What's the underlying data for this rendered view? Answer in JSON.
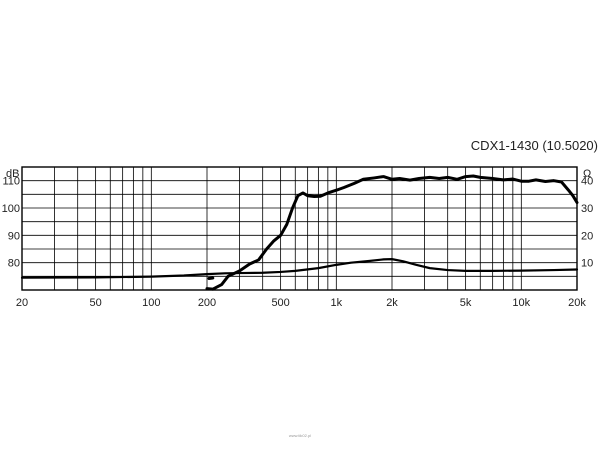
{
  "chart_data": {
    "type": "line",
    "title": "CDX1-1430 (10.5020)",
    "xscale": "log",
    "xlim": [
      20,
      20000
    ],
    "ylim_left": [
      70,
      115
    ],
    "ylim_right": [
      0,
      45
    ],
    "left_unit": "dB",
    "right_unit": "Ω",
    "x_ticks": [
      {
        "value": 20,
        "label": "20"
      },
      {
        "value": 50,
        "label": "50"
      },
      {
        "value": 100,
        "label": "100"
      },
      {
        "value": 200,
        "label": "200"
      },
      {
        "value": 500,
        "label": "500"
      },
      {
        "value": 1000,
        "label": "1k"
      },
      {
        "value": 2000,
        "label": "2k"
      },
      {
        "value": 5000,
        "label": "5k"
      },
      {
        "value": 10000,
        "label": "10k"
      },
      {
        "value": 20000,
        "label": "20k"
      }
    ],
    "y_ticks_left": [
      {
        "value": 80,
        "label": "80"
      },
      {
        "value": 90,
        "label": "90"
      },
      {
        "value": 100,
        "label": "100"
      },
      {
        "value": 110,
        "label": "110"
      }
    ],
    "y_ticks_right": [
      {
        "value": 10,
        "label": "10"
      },
      {
        "value": 20,
        "label": "20"
      },
      {
        "value": 30,
        "label": "30"
      },
      {
        "value": 40,
        "label": "40"
      }
    ],
    "grid": true,
    "series": [
      {
        "axis": "left",
        "x": [
          200,
          215,
          240,
          260,
          300,
          340,
          380,
          420,
          460,
          500,
          540,
          580,
          620,
          660,
          700,
          760,
          820,
          900,
          1000,
          1100,
          1250,
          1400,
          1600,
          1800,
          2000,
          2200,
          2500,
          2800,
          3200,
          3600,
          4000,
          4500,
          5000,
          5500,
          6000,
          7000,
          8000,
          9000,
          10000,
          11000,
          12000,
          13500,
          15000,
          16500,
          18000,
          19000,
          20000
        ],
        "y": [
          70.5,
          70.3,
          72,
          75,
          77,
          79.5,
          81,
          85,
          88,
          90,
          94,
          100,
          104.5,
          105.5,
          104.5,
          104.2,
          104.3,
          105.5,
          106.5,
          107.5,
          109,
          110.5,
          111,
          111.5,
          110.5,
          110.8,
          110.2,
          110.8,
          111.2,
          110.8,
          111.2,
          110.5,
          111.5,
          111.7,
          111.2,
          110.8,
          110.3,
          110.6,
          109.8,
          109.8,
          110.3,
          109.7,
          110,
          109.5,
          106.5,
          104.5,
          102
        ]
      },
      {
        "axis": "right",
        "x": [
          20,
          50,
          100,
          150,
          200,
          250,
          300,
          400,
          500,
          600,
          800,
          1000,
          1200,
          1500,
          1800,
          2000,
          2300,
          2700,
          3200,
          4000,
          5000,
          7000,
          10000,
          15000,
          20000
        ],
        "y": [
          4.5,
          4.6,
          4.9,
          5.3,
          5.8,
          6.1,
          6.2,
          6.3,
          6.6,
          7,
          8,
          9.2,
          10,
          10.6,
          11.2,
          11.3,
          10.5,
          9.2,
          8,
          7.3,
          7,
          7,
          7.1,
          7.3,
          7.5
        ]
      },
      {
        "axis": "left",
        "x": [
          205,
          215
        ],
        "y": [
          74.2,
          74.4
        ]
      }
    ]
  }
}
